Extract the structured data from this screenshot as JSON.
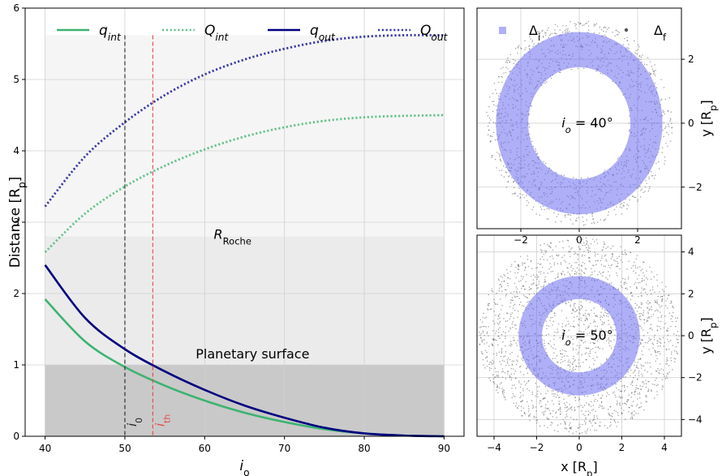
{
  "chart_data": [
    {
      "type": "line",
      "xlabel": "i",
      "xlabel_sub": "o",
      "xlabel_sup": "°",
      "ylabel": "Distance [R",
      "ylabel_sub": "p",
      "ylabel_end": "]",
      "xlim": [
        37.5,
        92.5
      ],
      "ylim": [
        0,
        6
      ],
      "xticks": [
        "40",
        "50",
        "60",
        "70",
        "80",
        "90"
      ],
      "yticks": [
        "0",
        "1",
        "2",
        "3",
        "4",
        "5",
        "6"
      ],
      "grid": true,
      "legend_placement": "top",
      "regions": [
        {
          "label": "",
          "y0": 2.8,
          "y1": 5.62,
          "color": "#f5f5f5"
        },
        {
          "label": "R",
          "label_sub": "Roche",
          "y0": 1.0,
          "y1": 2.8,
          "color": "#ebebeb"
        },
        {
          "label": "Planetary surface",
          "y0": 0,
          "y1": 1.0,
          "color": "#c9c9c9"
        }
      ],
      "x": [
        40,
        45,
        50,
        55,
        60,
        65,
        70,
        75,
        80,
        85,
        90
      ],
      "series": [
        {
          "name": "q",
          "name_sub": "int",
          "style": "solid",
          "color": "#3cb371",
          "values": [
            1.92,
            1.33,
            0.97,
            0.71,
            0.5,
            0.33,
            0.2,
            0.1,
            0.04,
            0.01,
            0.0
          ]
        },
        {
          "name": "Q",
          "name_sub": "int",
          "style": "dotted",
          "color": "#66c28a",
          "values": [
            2.58,
            3.12,
            3.5,
            3.79,
            4.02,
            4.2,
            4.33,
            4.42,
            4.47,
            4.49,
            4.5
          ]
        },
        {
          "name": "q",
          "name_sub": "out",
          "style": "solid",
          "color": "#000080",
          "values": [
            2.4,
            1.66,
            1.22,
            0.91,
            0.65,
            0.43,
            0.26,
            0.12,
            0.04,
            0.01,
            0.0
          ]
        },
        {
          "name": "Q",
          "name_sub": "out",
          "style": "dotted",
          "color": "#3a3aa8",
          "values": [
            3.22,
            3.92,
            4.4,
            4.78,
            5.07,
            5.28,
            5.43,
            5.54,
            5.6,
            5.62,
            5.62
          ]
        }
      ],
      "vlines": [
        {
          "x": 50,
          "label": "i",
          "label_sub": "0",
          "color": "#222222"
        },
        {
          "x": 53.5,
          "label": "i",
          "label_sub": "th",
          "color": "#e84848"
        }
      ]
    },
    {
      "type": "scatter",
      "xlim": [
        -3.5,
        3.5
      ],
      "ylim": [
        -3.3,
        3.6
      ],
      "xticks": [
        -2,
        0,
        2
      ],
      "yticks": [
        -2,
        0,
        2
      ],
      "ylabel": "y [R",
      "ylabel_sub": "p",
      "ylabel_end": "]",
      "annotation": "i",
      "annotation_sub": "o",
      "annotation_end": " = 40°",
      "legend": [
        {
          "name": "Δ",
          "name_sub": "i",
          "color": "#7b7bf0"
        },
        {
          "name": "Δ",
          "name_sub": "f",
          "color": "#555555"
        }
      ],
      "grid": true,
      "annulus_inner": 1.75,
      "annulus_outer": 2.85,
      "scatter_inner": 1.7,
      "scatter_outer": 3.2
    },
    {
      "type": "scatter",
      "xlim": [
        -4.8,
        4.8
      ],
      "ylim": [
        -4.8,
        4.8
      ],
      "xticks": [
        -4,
        -2,
        0,
        2,
        4
      ],
      "yticks": [
        -4,
        -2,
        0,
        2,
        4
      ],
      "xlabel": "x [R",
      "xlabel_sub": "p",
      "xlabel_end": "]",
      "ylabel": "y [R",
      "ylabel_sub": "p",
      "ylabel_end": "]",
      "annotation": "i",
      "annotation_sub": "o",
      "annotation_end": " = 50°",
      "grid": true,
      "annulus_inner": 1.75,
      "annulus_outer": 2.85,
      "scatter_inner": 0.0,
      "scatter_outer": 4.7
    }
  ]
}
